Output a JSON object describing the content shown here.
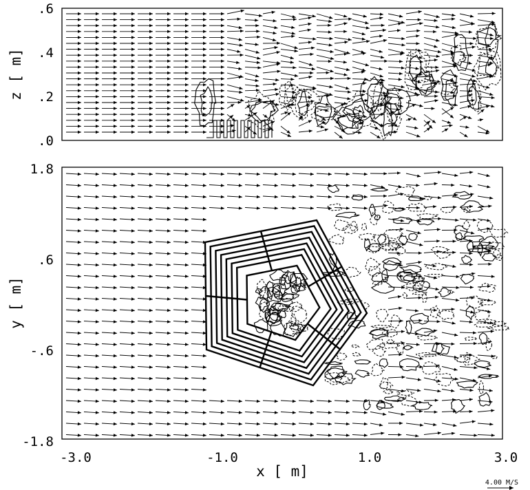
{
  "chart_data": [
    {
      "type": "vector-field",
      "panel": "top",
      "ylabel": "z [ m]",
      "yticks": [
        ".0",
        ".2",
        ".4",
        ".6"
      ],
      "yvalues": [
        0.0,
        0.2,
        0.4,
        0.6
      ],
      "xlim": [
        -3.0,
        3.0
      ],
      "ylim": [
        0.0,
        0.6
      ],
      "grid": false,
      "annotations": "wind vectors with solid and dashed contours of turbulence in the wake"
    },
    {
      "type": "vector-field",
      "panel": "bottom",
      "xlabel": "x [ m]",
      "ylabel": "y [ m]",
      "xticks": [
        "-3.0",
        "-1.0",
        "1.0",
        "3.0"
      ],
      "xvalues": [
        -3.0,
        -1.0,
        1.0,
        3.0
      ],
      "yticks": [
        "-1.8",
        "-.6",
        ".6",
        "1.8"
      ],
      "yvalues": [
        -1.8,
        -0.6,
        0.6,
        1.8
      ],
      "xlim": [
        -3.0,
        3.0
      ],
      "ylim": [
        -1.8,
        1.8
      ],
      "grid": false,
      "annotations": "pentagon-shaped building outline with wind vectors and wake contours"
    }
  ],
  "reference_vector": {
    "label": "4.00 M/S"
  },
  "colors": {
    "ink": "#000000",
    "background": "#ffffff"
  }
}
